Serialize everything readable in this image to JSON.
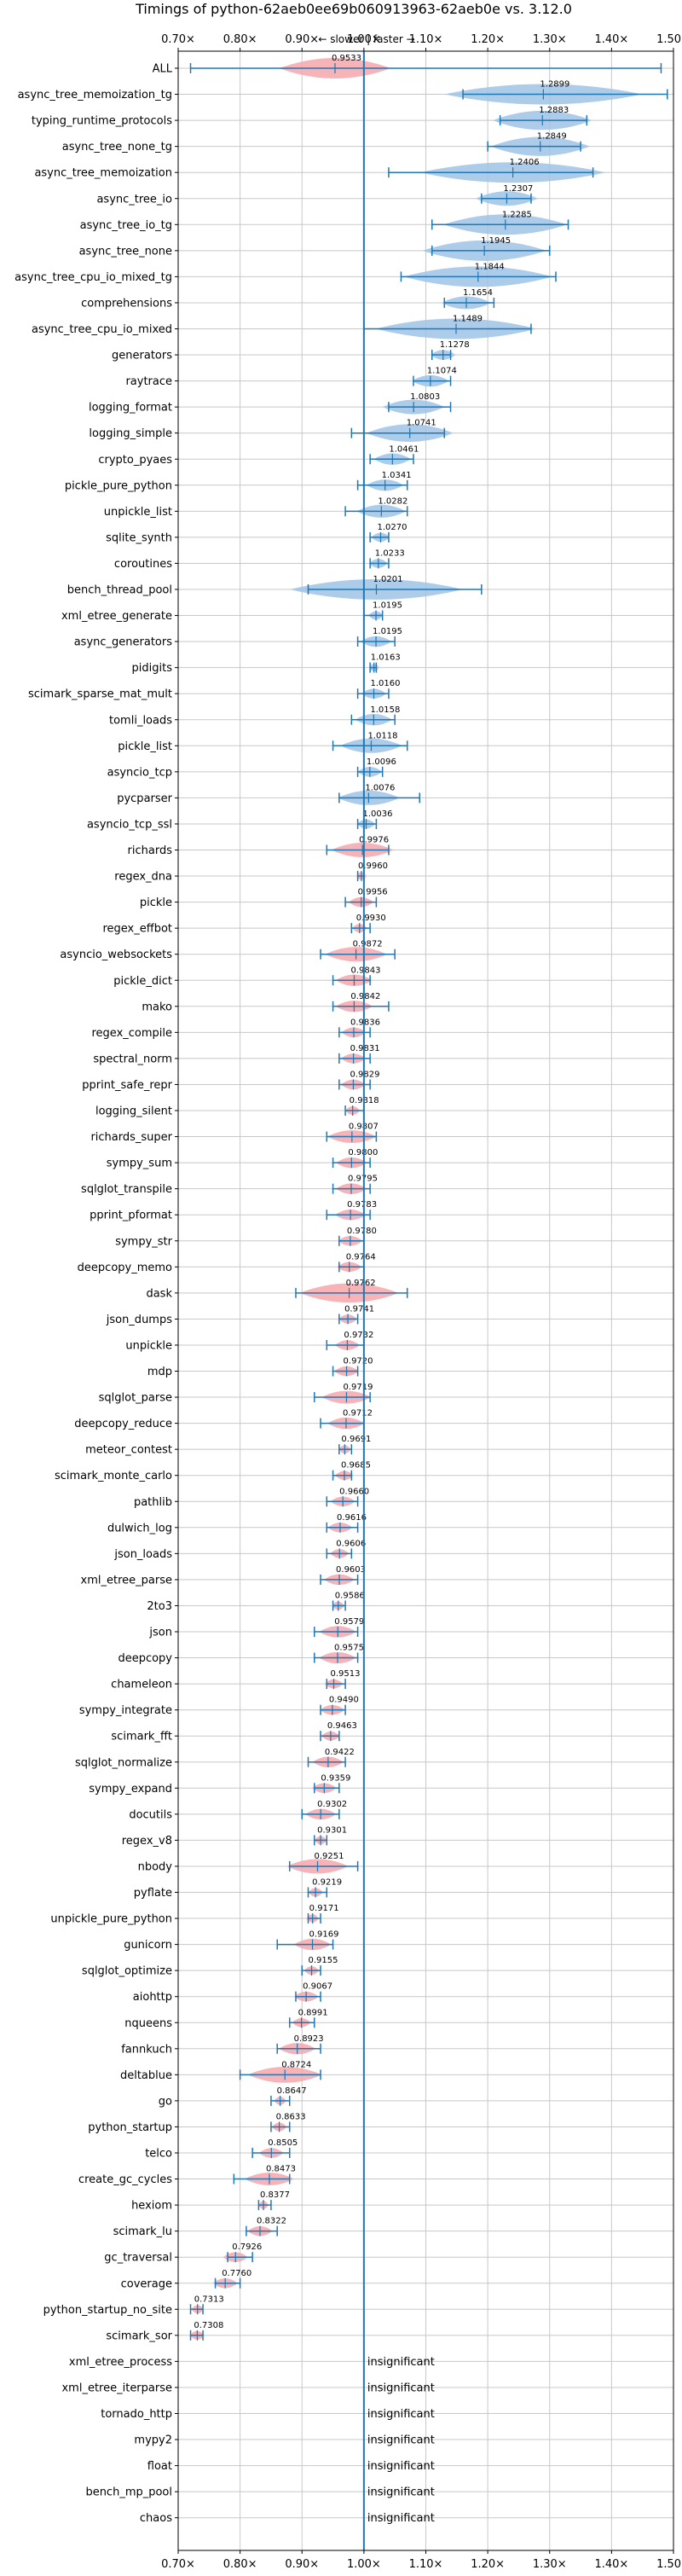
{
  "chart_data": {
    "type": "violin",
    "title": "Timings of python-62aeb0ee69b060913963-62aeb0e vs. 3.12.0",
    "direction_label": "← slower | faster →",
    "xlim": [
      0.7,
      1.5
    ],
    "reference_line": 1.0,
    "x_tick_labels": [
      "0.70×",
      "0.80×",
      "0.90×",
      "1.00×",
      "1.10×",
      "1.20×",
      "1.30×",
      "1.40×",
      "1.50×"
    ],
    "x_ticks": [
      0.7,
      0.8,
      0.9,
      1.0,
      1.1,
      1.2,
      1.3,
      1.4,
      1.5
    ],
    "colors": {
      "faster": "#9dc3e6",
      "slower": "#f4a6ac",
      "reference": "#1f77b4",
      "errorbar": "#1f77b4",
      "grid": "#c8c8c8"
    },
    "insignificant_label": "insignificant",
    "benchmarks": [
      {
        "name": "ALL",
        "value": 0.9533,
        "label": "0.9533",
        "low": 0.72,
        "high": 1.48,
        "spread": 0.09
      },
      {
        "name": "async_tree_memoization_tg",
        "value": 1.2899,
        "label": "1.2899",
        "low": 1.16,
        "high": 1.49,
        "spread": 0.16
      },
      {
        "name": "typing_runtime_protocols",
        "value": 1.2883,
        "label": "1.2883",
        "low": 1.22,
        "high": 1.36,
        "spread": 0.08
      },
      {
        "name": "async_tree_none_tg",
        "value": 1.2849,
        "label": "1.2849",
        "low": 1.2,
        "high": 1.35,
        "spread": 0.08
      },
      {
        "name": "async_tree_memoization",
        "value": 1.2406,
        "label": "1.2406",
        "low": 1.04,
        "high": 1.37,
        "spread": 0.15
      },
      {
        "name": "async_tree_io",
        "value": 1.2307,
        "label": "1.2307",
        "low": 1.19,
        "high": 1.27,
        "spread": 0.05
      },
      {
        "name": "async_tree_io_tg",
        "value": 1.2285,
        "label": "1.2285",
        "low": 1.11,
        "high": 1.33,
        "spread": 0.1
      },
      {
        "name": "async_tree_none",
        "value": 1.1945,
        "label": "1.1945",
        "low": 1.11,
        "high": 1.3,
        "spread": 0.1
      },
      {
        "name": "async_tree_cpu_io_mixed_tg",
        "value": 1.1844,
        "label": "1.1844",
        "low": 1.06,
        "high": 1.31,
        "spread": 0.12
      },
      {
        "name": "comprehensions",
        "value": 1.1654,
        "label": "1.1654",
        "low": 1.13,
        "high": 1.21,
        "spread": 0.04
      },
      {
        "name": "async_tree_cpu_io_mixed",
        "value": 1.1489,
        "label": "1.1489",
        "low": 1.0,
        "high": 1.27,
        "spread": 0.13
      },
      {
        "name": "generators",
        "value": 1.1278,
        "label": "1.1278",
        "low": 1.11,
        "high": 1.14,
        "spread": 0.02
      },
      {
        "name": "raytrace",
        "value": 1.1074,
        "label": "1.1074",
        "low": 1.08,
        "high": 1.14,
        "spread": 0.03
      },
      {
        "name": "logging_format",
        "value": 1.0803,
        "label": "1.0803",
        "low": 1.04,
        "high": 1.14,
        "spread": 0.05
      },
      {
        "name": "logging_simple",
        "value": 1.0741,
        "label": "1.0741",
        "low": 0.98,
        "high": 1.13,
        "spread": 0.07
      },
      {
        "name": "crypto_pyaes",
        "value": 1.0461,
        "label": "1.0461",
        "low": 1.01,
        "high": 1.08,
        "spread": 0.03
      },
      {
        "name": "pickle_pure_python",
        "value": 1.0341,
        "label": "1.0341",
        "low": 0.99,
        "high": 1.07,
        "spread": 0.03
      },
      {
        "name": "unpickle_list",
        "value": 1.0282,
        "label": "1.0282",
        "low": 0.97,
        "high": 1.07,
        "spread": 0.04
      },
      {
        "name": "sqlite_synth",
        "value": 1.027,
        "label": "1.0270",
        "low": 1.01,
        "high": 1.04,
        "spread": 0.015
      },
      {
        "name": "coroutines",
        "value": 1.0233,
        "label": "1.0233",
        "low": 1.01,
        "high": 1.04,
        "spread": 0.015
      },
      {
        "name": "bench_thread_pool",
        "value": 1.0201,
        "label": "1.0201",
        "low": 0.91,
        "high": 1.19,
        "spread": 0.14
      },
      {
        "name": "xml_etree_generate",
        "value": 1.0195,
        "label": "1.0195",
        "low": 1.0,
        "high": 1.03,
        "spread": 0.012
      },
      {
        "name": "async_generators",
        "value": 1.0195,
        "label": "1.0195",
        "low": 0.99,
        "high": 1.05,
        "spread": 0.025
      },
      {
        "name": "pidigits",
        "value": 1.0163,
        "label": "1.0163",
        "low": 1.01,
        "high": 1.02,
        "spread": 0.006
      },
      {
        "name": "scimark_sparse_mat_mult",
        "value": 1.016,
        "label": "1.0160",
        "low": 0.99,
        "high": 1.04,
        "spread": 0.02
      },
      {
        "name": "tomli_loads",
        "value": 1.0158,
        "label": "1.0158",
        "low": 0.98,
        "high": 1.05,
        "spread": 0.03
      },
      {
        "name": "pickle_list",
        "value": 1.0118,
        "label": "1.0118",
        "low": 0.95,
        "high": 1.07,
        "spread": 0.05
      },
      {
        "name": "asyncio_tcp",
        "value": 1.0096,
        "label": "1.0096",
        "low": 0.99,
        "high": 1.03,
        "spread": 0.02
      },
      {
        "name": "pycparser",
        "value": 1.0076,
        "label": "1.0076",
        "low": 0.96,
        "high": 1.09,
        "spread": 0.05
      },
      {
        "name": "asyncio_tcp_ssl",
        "value": 1.0036,
        "label": "1.0036",
        "low": 0.99,
        "high": 1.02,
        "spread": 0.015
      },
      {
        "name": "richards",
        "value": 0.9976,
        "label": "0.9976",
        "low": 0.94,
        "high": 1.04,
        "spread": 0.05
      },
      {
        "name": "regex_dna",
        "value": 0.996,
        "label": "0.9960",
        "low": 0.99,
        "high": 1.0,
        "spread": 0.008
      },
      {
        "name": "pickle",
        "value": 0.9956,
        "label": "0.9956",
        "low": 0.97,
        "high": 1.02,
        "spread": 0.02
      },
      {
        "name": "regex_effbot",
        "value": 0.993,
        "label": "0.9930",
        "low": 0.98,
        "high": 1.01,
        "spread": 0.012
      },
      {
        "name": "asyncio_websockets",
        "value": 0.9872,
        "label": "0.9872",
        "low": 0.93,
        "high": 1.05,
        "spread": 0.05
      },
      {
        "name": "pickle_dict",
        "value": 0.9843,
        "label": "0.9843",
        "low": 0.95,
        "high": 1.01,
        "spread": 0.03
      },
      {
        "name": "mako",
        "value": 0.9842,
        "label": "0.9842",
        "low": 0.95,
        "high": 1.04,
        "spread": 0.03
      },
      {
        "name": "regex_compile",
        "value": 0.9836,
        "label": "0.9836",
        "low": 0.96,
        "high": 1.01,
        "spread": 0.02
      },
      {
        "name": "spectral_norm",
        "value": 0.9831,
        "label": "0.9831",
        "low": 0.96,
        "high": 1.01,
        "spread": 0.02
      },
      {
        "name": "pprint_safe_repr",
        "value": 0.9829,
        "label": "0.9829",
        "low": 0.96,
        "high": 1.01,
        "spread": 0.02
      },
      {
        "name": "logging_silent",
        "value": 0.9818,
        "label": "0.9818",
        "low": 0.97,
        "high": 1.0,
        "spread": 0.012
      },
      {
        "name": "richards_super",
        "value": 0.9807,
        "label": "0.9807",
        "low": 0.94,
        "high": 1.02,
        "spread": 0.04
      },
      {
        "name": "sympy_sum",
        "value": 0.98,
        "label": "0.9800",
        "low": 0.95,
        "high": 1.01,
        "spread": 0.025
      },
      {
        "name": "sqlglot_transpile",
        "value": 0.9795,
        "label": "0.9795",
        "low": 0.95,
        "high": 1.01,
        "spread": 0.025
      },
      {
        "name": "pprint_pformat",
        "value": 0.9783,
        "label": "0.9783",
        "low": 0.94,
        "high": 1.01,
        "spread": 0.025
      },
      {
        "name": "sympy_str",
        "value": 0.978,
        "label": "0.9780",
        "low": 0.96,
        "high": 1.0,
        "spread": 0.02
      },
      {
        "name": "deepcopy_memo",
        "value": 0.9764,
        "label": "0.9764",
        "low": 0.96,
        "high": 1.0,
        "spread": 0.02
      },
      {
        "name": "dask",
        "value": 0.9762,
        "label": "0.9762",
        "low": 0.89,
        "high": 1.07,
        "spread": 0.08
      },
      {
        "name": "json_dumps",
        "value": 0.9741,
        "label": "0.9741",
        "low": 0.96,
        "high": 0.99,
        "spread": 0.015
      },
      {
        "name": "unpickle",
        "value": 0.9732,
        "label": "0.9732",
        "low": 0.94,
        "high": 1.0,
        "spread": 0.02
      },
      {
        "name": "mdp",
        "value": 0.972,
        "label": "0.9720",
        "low": 0.95,
        "high": 0.99,
        "spread": 0.02
      },
      {
        "name": "sqlglot_parse",
        "value": 0.9719,
        "label": "0.9719",
        "low": 0.92,
        "high": 1.01,
        "spread": 0.04
      },
      {
        "name": "deepcopy_reduce",
        "value": 0.9712,
        "label": "0.9712",
        "low": 0.93,
        "high": 1.0,
        "spread": 0.03
      },
      {
        "name": "meteor_contest",
        "value": 0.9691,
        "label": "0.9691",
        "low": 0.96,
        "high": 0.98,
        "spread": 0.01
      },
      {
        "name": "scimark_monte_carlo",
        "value": 0.9685,
        "label": "0.9685",
        "low": 0.95,
        "high": 0.98,
        "spread": 0.015
      },
      {
        "name": "pathlib",
        "value": 0.966,
        "label": "0.9660",
        "low": 0.94,
        "high": 0.99,
        "spread": 0.02
      },
      {
        "name": "dulwich_log",
        "value": 0.9616,
        "label": "0.9616",
        "low": 0.94,
        "high": 0.99,
        "spread": 0.02
      },
      {
        "name": "json_loads",
        "value": 0.9606,
        "label": "0.9606",
        "low": 0.94,
        "high": 0.98,
        "spread": 0.015
      },
      {
        "name": "xml_etree_parse",
        "value": 0.9603,
        "label": "0.9603",
        "low": 0.93,
        "high": 0.99,
        "spread": 0.025
      },
      {
        "name": "2to3",
        "value": 0.9586,
        "label": "0.9586",
        "low": 0.95,
        "high": 0.97,
        "spread": 0.01
      },
      {
        "name": "json",
        "value": 0.9579,
        "label": "0.9579",
        "low": 0.92,
        "high": 0.99,
        "spread": 0.03
      },
      {
        "name": "deepcopy",
        "value": 0.9575,
        "label": "0.9575",
        "low": 0.92,
        "high": 0.99,
        "spread": 0.03
      },
      {
        "name": "chameleon",
        "value": 0.9513,
        "label": "0.9513",
        "low": 0.94,
        "high": 0.97,
        "spread": 0.015
      },
      {
        "name": "sympy_integrate",
        "value": 0.949,
        "label": "0.9490",
        "low": 0.93,
        "high": 0.97,
        "spread": 0.02
      },
      {
        "name": "scimark_fft",
        "value": 0.9463,
        "label": "0.9463",
        "low": 0.93,
        "high": 0.96,
        "spread": 0.015
      },
      {
        "name": "sqlglot_normalize",
        "value": 0.9422,
        "label": "0.9422",
        "low": 0.91,
        "high": 0.97,
        "spread": 0.025
      },
      {
        "name": "sympy_expand",
        "value": 0.9359,
        "label": "0.9359",
        "low": 0.92,
        "high": 0.96,
        "spread": 0.02
      },
      {
        "name": "docutils",
        "value": 0.9302,
        "label": "0.9302",
        "low": 0.9,
        "high": 0.96,
        "spread": 0.025
      },
      {
        "name": "regex_v8",
        "value": 0.9301,
        "label": "0.9301",
        "low": 0.92,
        "high": 0.94,
        "spread": 0.01
      },
      {
        "name": "nbody",
        "value": 0.9251,
        "label": "0.9251",
        "low": 0.88,
        "high": 0.99,
        "spread": 0.05
      },
      {
        "name": "pyflate",
        "value": 0.9219,
        "label": "0.9219",
        "low": 0.91,
        "high": 0.94,
        "spread": 0.012
      },
      {
        "name": "unpickle_pure_python",
        "value": 0.9171,
        "label": "0.9171",
        "low": 0.91,
        "high": 0.93,
        "spread": 0.01
      },
      {
        "name": "gunicorn",
        "value": 0.9169,
        "label": "0.9169",
        "low": 0.86,
        "high": 0.95,
        "spread": 0.03
      },
      {
        "name": "sqlglot_optimize",
        "value": 0.9155,
        "label": "0.9155",
        "low": 0.9,
        "high": 0.93,
        "spread": 0.012
      },
      {
        "name": "aiohttp",
        "value": 0.9067,
        "label": "0.9067",
        "low": 0.89,
        "high": 0.93,
        "spread": 0.02
      },
      {
        "name": "nqueens",
        "value": 0.8991,
        "label": "0.8991",
        "low": 0.88,
        "high": 0.92,
        "spread": 0.015
      },
      {
        "name": "fannkuch",
        "value": 0.8923,
        "label": "0.8923",
        "low": 0.86,
        "high": 0.93,
        "spread": 0.03
      },
      {
        "name": "deltablue",
        "value": 0.8724,
        "label": "0.8724",
        "low": 0.8,
        "high": 0.93,
        "spread": 0.06
      },
      {
        "name": "go",
        "value": 0.8647,
        "label": "0.8647",
        "low": 0.85,
        "high": 0.88,
        "spread": 0.01
      },
      {
        "name": "python_startup",
        "value": 0.8633,
        "label": "0.8633",
        "low": 0.85,
        "high": 0.88,
        "spread": 0.012
      },
      {
        "name": "telco",
        "value": 0.8505,
        "label": "0.8505",
        "low": 0.82,
        "high": 0.88,
        "spread": 0.02
      },
      {
        "name": "create_gc_cycles",
        "value": 0.8473,
        "label": "0.8473",
        "low": 0.79,
        "high": 0.88,
        "spread": 0.04
      },
      {
        "name": "hexiom",
        "value": 0.8377,
        "label": "0.8377",
        "low": 0.83,
        "high": 0.85,
        "spread": 0.008
      },
      {
        "name": "scimark_lu",
        "value": 0.8322,
        "label": "0.8322",
        "low": 0.81,
        "high": 0.86,
        "spread": 0.02
      },
      {
        "name": "gc_traversal",
        "value": 0.7926,
        "label": "0.7926",
        "low": 0.78,
        "high": 0.82,
        "spread": 0.02
      },
      {
        "name": "coverage",
        "value": 0.776,
        "label": "0.7760",
        "low": 0.76,
        "high": 0.8,
        "spread": 0.02
      },
      {
        "name": "python_startup_no_site",
        "value": 0.7313,
        "label": "0.7313",
        "low": 0.72,
        "high": 0.74,
        "spread": 0.01
      },
      {
        "name": "scimark_sor",
        "value": 0.7308,
        "label": "0.7308",
        "low": 0.72,
        "high": 0.74,
        "spread": 0.012
      },
      {
        "name": "xml_etree_process",
        "value": null,
        "label": null,
        "insignificant": true
      },
      {
        "name": "xml_etree_iterparse",
        "value": null,
        "label": null,
        "insignificant": true
      },
      {
        "name": "tornado_http",
        "value": null,
        "label": null,
        "insignificant": true
      },
      {
        "name": "mypy2",
        "value": null,
        "label": null,
        "insignificant": true
      },
      {
        "name": "float",
        "value": null,
        "label": null,
        "insignificant": true
      },
      {
        "name": "bench_mp_pool",
        "value": null,
        "label": null,
        "insignificant": true
      },
      {
        "name": "chaos",
        "value": null,
        "label": null,
        "insignificant": true
      }
    ]
  }
}
